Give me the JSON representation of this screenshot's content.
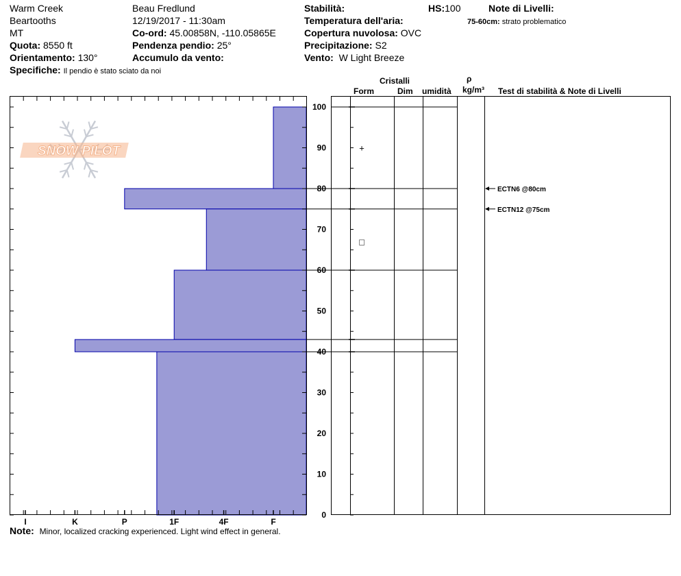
{
  "header": {
    "location": "Warm Creek",
    "range": "Beartooths",
    "state": "MT",
    "elevation_label": "Quota:",
    "elevation_value": "8550 ft",
    "aspect_label": "Orientamento:",
    "aspect_value": "130°",
    "specifics_label": "Specifiche:",
    "specifics_value": "Il pendio è stato sciato da noi",
    "observer": "Beau  Fredlund",
    "datetime": "12/19/2017 - 11:30am",
    "coords_label": "Co-ord:",
    "coords_value": "45.00858N, -110.05865E",
    "slope_label": "Pendenza pendio:",
    "slope_value": "25°",
    "wind_loading_label": "Accumulo da vento:",
    "stability_label": "Stabilità:",
    "air_temp_label": "Temperatura dell'aria:",
    "cloud_label": "Copertura nuvolosa:",
    "cloud_value": "OVC",
    "precip_label": "Precipitazione:",
    "precip_value": "S2",
    "wind_label": "Vento:",
    "wind_value": "W Light Breeze",
    "hs_label": "HS:",
    "hs_value": "100",
    "layer_notes_label": "Note di Livelli:",
    "layer_note_depth": "75-60cm:",
    "layer_note_text": "strato problematico"
  },
  "table_headers": {
    "crystals": "Cristalli",
    "form": "Form",
    "dim": "Dim",
    "moisture": "umidità",
    "rho": "ρ",
    "density_unit": "kg/m³",
    "tests": "Test di stabilità & Note di Livelli"
  },
  "footer": {
    "note_label": "Note:",
    "note_text": "Minor, localized cracking experienced.  Light wind effect in general."
  },
  "logo_text": "SNOW PILOT",
  "colors": {
    "hardness_fill": "#9b9bd6",
    "hardness_stroke": "#0000aa",
    "logo": "#f5b48c",
    "snowflake": "#c8ccd4"
  },
  "chart_data": {
    "type": "bar",
    "orientation": "horizontal",
    "y_axis_label": "",
    "ylim": [
      0,
      100
    ],
    "y_ticks": [
      "0",
      "10",
      "20",
      "30",
      "40",
      "50",
      "60",
      "70",
      "80",
      "90",
      "100"
    ],
    "hardness_scale": [
      "I",
      "K",
      "P",
      "1F",
      "4F",
      "F"
    ],
    "layers": [
      {
        "top": 100,
        "bottom": 80,
        "hardness": "F"
      },
      {
        "top": 80,
        "bottom": 75,
        "hardness": "P"
      },
      {
        "top": 75,
        "bottom": 60,
        "hardness": "4F-"
      },
      {
        "top": 60,
        "bottom": 43,
        "hardness": "1F"
      },
      {
        "top": 43,
        "bottom": 40,
        "hardness": "K"
      },
      {
        "top": 40,
        "bottom": 0,
        "hardness": "1F+"
      }
    ],
    "layer_hardness_index": [
      5,
      2,
      3.65,
      3,
      1,
      2.65
    ],
    "boundaries": [
      100,
      80,
      75,
      60,
      43,
      40
    ],
    "crystal_symbols": [
      {
        "depth": 90,
        "symbol": "+"
      },
      {
        "depth": 67,
        "symbol": "□"
      }
    ],
    "tests": [
      {
        "depth": 80,
        "text": "ECTN6 @80cm"
      },
      {
        "depth": 75,
        "text": "ECTN12 @75cm"
      }
    ]
  }
}
